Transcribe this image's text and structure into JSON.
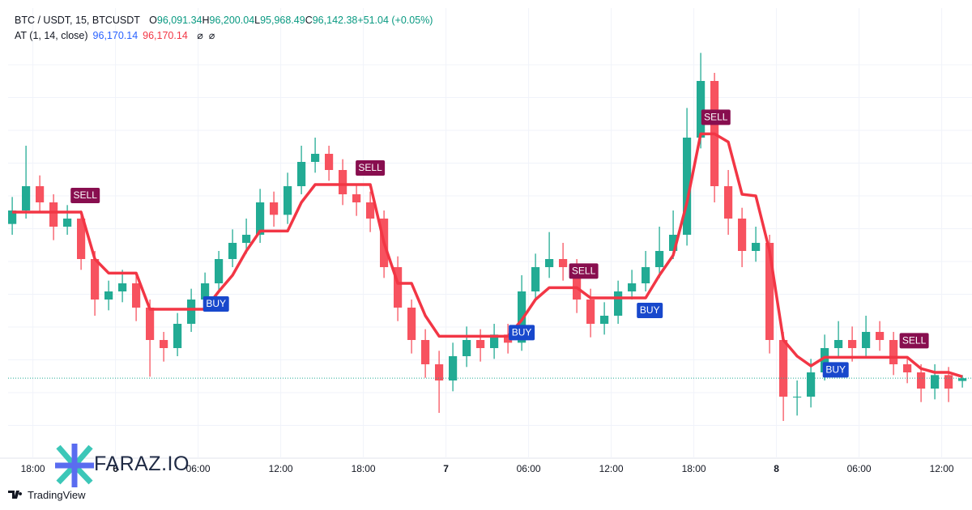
{
  "header": {
    "symbol": "BTC / USDT, 15, BTCUSDT",
    "o_label": "O",
    "open": "96,091.34",
    "h_label": "H",
    "high": "96,200.04",
    "l_label": "L",
    "low": "95,968.49",
    "c_label": "C",
    "close": "96,142.38",
    "change": "+51.04 (+0.05%)"
  },
  "indicator": {
    "name": "AT (1, 14, close)",
    "value_1": "96,170.14",
    "value_2": "96,170.14"
  },
  "chart_data": {
    "type": "candlestick",
    "x": [
      -7.5,
      -6.5,
      -5.5,
      -4.5,
      -3.5,
      -2.5,
      -1.5,
      -0.5,
      0.5,
      1.5,
      2.5,
      3.5,
      4.5,
      5.5,
      6.5,
      7.5,
      8.5,
      9.5,
      10.5,
      11.5,
      12.5,
      13.5,
      14.5,
      15.5,
      16.5,
      17.5,
      18.5,
      19.5,
      20.5,
      21.5,
      22.5,
      23.5,
      24.5,
      25.5,
      26.5,
      27.5,
      28.5,
      29.5,
      30.5,
      31.5,
      32.5,
      33.5,
      34.5,
      35.5,
      36.5,
      37.5,
      38.5,
      39.5,
      40.5,
      41.5,
      42.5,
      43.5,
      44.5,
      45.5,
      46.5,
      47.5,
      48.5,
      49.5,
      50.5,
      51.5,
      52.5,
      53.5,
      54.5,
      55.5,
      56.5,
      57.5,
      58.5,
      59.5,
      60.5,
      61.5
    ],
    "open": [
      99000,
      99250,
      99700,
      99400,
      98950,
      99100,
      98350,
      97600,
      97750,
      97900,
      97450,
      96850,
      96700,
      97150,
      97600,
      97900,
      98350,
      98650,
      98800,
      99400,
      99170,
      99700,
      100150,
      100300,
      100000,
      99550,
      99400,
      99100,
      98200,
      97450,
      96850,
      96400,
      96100,
      96550,
      96850,
      96700,
      96950,
      96800,
      97750,
      98200,
      98350,
      98200,
      97600,
      97150,
      97300,
      97750,
      97900,
      98200,
      98500,
      98800,
      100600,
      101650,
      99700,
      99100,
      98500,
      98650,
      96850,
      95800,
      95800,
      96250,
      96700,
      96850,
      96700,
      97000,
      96850,
      96400,
      96250,
      95950,
      96200,
      96091.34
    ],
    "high": [
      99500,
      100450,
      99900,
      99550,
      99350,
      99250,
      98500,
      97950,
      98150,
      98100,
      97600,
      97000,
      97350,
      97800,
      98100,
      98500,
      98900,
      99100,
      99650,
      99600,
      99950,
      100450,
      100600,
      100450,
      100200,
      99750,
      99600,
      99250,
      98400,
      97600,
      97050,
      96650,
      96800,
      97100,
      97050,
      97150,
      97150,
      98050,
      98450,
      98850,
      98650,
      98350,
      97800,
      97550,
      97950,
      98150,
      98500,
      98950,
      99250,
      101150,
      102170,
      101800,
      100000,
      99300,
      98950,
      98800,
      97000,
      96100,
      96500,
      96950,
      97200,
      97100,
      97300,
      97200,
      97000,
      96550,
      96400,
      96400,
      96350,
      96200.04
    ],
    "low": [
      98800,
      99100,
      99200,
      98700,
      98800,
      98150,
      97300,
      97400,
      97550,
      97200,
      96170,
      96450,
      96550,
      97000,
      97450,
      97750,
      98200,
      98450,
      98650,
      98950,
      99000,
      99550,
      99950,
      99800,
      99350,
      99150,
      98850,
      98000,
      97200,
      96600,
      96150,
      95500,
      95900,
      96350,
      96450,
      96500,
      96600,
      96650,
      97600,
      98000,
      97950,
      97350,
      96900,
      96950,
      97150,
      97600,
      97750,
      98000,
      98350,
      98600,
      100400,
      99400,
      98800,
      98200,
      98300,
      96600,
      95350,
      95450,
      95600,
      96100,
      96550,
      96450,
      96550,
      96650,
      96200,
      96050,
      95700,
      95750,
      95700,
      95968.49
    ],
    "close": [
      99250,
      99700,
      99400,
      98950,
      99100,
      98350,
      97600,
      97750,
      97900,
      97450,
      96850,
      96700,
      97150,
      97600,
      97900,
      98350,
      98650,
      98800,
      99400,
      99170,
      99700,
      100150,
      100300,
      100000,
      99550,
      99400,
      99100,
      98200,
      97450,
      96850,
      96400,
      96100,
      96550,
      96850,
      96700,
      96950,
      96800,
      97750,
      98200,
      98350,
      98200,
      97600,
      97150,
      97300,
      97750,
      97900,
      98200,
      98500,
      98800,
      100600,
      101650,
      99700,
      99100,
      98500,
      98650,
      96850,
      95800,
      95800,
      96250,
      96700,
      96850,
      96700,
      97000,
      96850,
      96400,
      96250,
      95950,
      96200,
      95950,
      96142.38
    ],
    "at_values": [
      99220,
      99220,
      99220,
      99220,
      99220,
      99220,
      98350,
      98090,
      98090,
      98090,
      97420,
      97420,
      97420,
      97420,
      97420,
      97750,
      98050,
      98500,
      98870,
      98870,
      98870,
      99400,
      99730,
      99730,
      99730,
      99730,
      99730,
      98650,
      97900,
      97900,
      97300,
      96920,
      96920,
      96920,
      96920,
      96920,
      96920,
      97220,
      97600,
      97820,
      97820,
      97820,
      97630,
      97630,
      97630,
      97630,
      97630,
      98050,
      98420,
      99400,
      100670,
      100670,
      100520,
      99550,
      99520,
      98500,
      96850,
      96550,
      96370,
      96530,
      96530,
      96530,
      96530,
      96530,
      96530,
      96530,
      96320,
      96250,
      96250,
      96170.14
    ],
    "signals": [
      {
        "label": "SELL",
        "x": -2.2
      },
      {
        "label": "BUY",
        "x": 7.3
      },
      {
        "label": "SELL",
        "x": 18.5
      },
      {
        "label": "BUY",
        "x": 29.5
      },
      {
        "label": "SELL",
        "x": 34
      },
      {
        "label": "BUY",
        "x": 38.8
      },
      {
        "label": "SELL",
        "x": 43.6
      },
      {
        "label": "BUY",
        "x": 52.3
      },
      {
        "label": "SELL",
        "x": 58
      }
    ],
    "xlim": [
      -7.8,
      62.2
    ],
    "ylim": [
      94600,
      102550
    ],
    "xticks": [
      {
        "value": -6,
        "label": "18:00"
      },
      {
        "value": 0,
        "label": "6"
      },
      {
        "value": 6,
        "label": "06:00"
      },
      {
        "value": 12,
        "label": "12:00"
      },
      {
        "value": 18,
        "label": "18:00"
      },
      {
        "value": 24,
        "label": "7"
      },
      {
        "value": 30,
        "label": "06:00"
      },
      {
        "value": 36,
        "label": "12:00"
      },
      {
        "value": 42,
        "label": "18:00"
      },
      {
        "value": 48,
        "label": "8"
      },
      {
        "value": 54,
        "label": "06:00"
      },
      {
        "value": 60,
        "label": "12:00"
      }
    ],
    "grid": true,
    "up_color": "#22ab94",
    "down_color": "#f7525f",
    "at_color": "#f23645",
    "sell_color": "#880e4f",
    "buy_color": "#1848cc",
    "last_line_color": "#22ab94"
  },
  "branding": {
    "watermark": "FARAZ.IO",
    "footer": "TradingView"
  }
}
